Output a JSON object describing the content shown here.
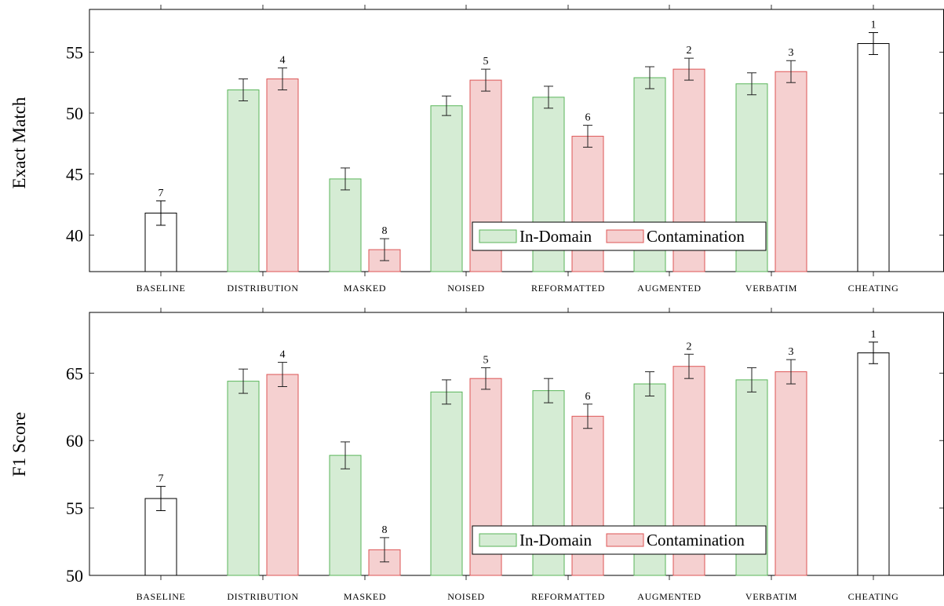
{
  "colors": {
    "in_domain_fill": "#d5ecd4",
    "in_domain_stroke": "#5ab55a",
    "contamination_fill": "#f5d0d0",
    "contamination_stroke": "#dd5555",
    "reference_fill": "#ffffff",
    "reference_stroke": "#000000"
  },
  "chart_data": [
    {
      "type": "bar",
      "ylabel": "Exact Match",
      "ylim": [
        37,
        58.5
      ],
      "yticks": [
        40,
        45,
        50,
        55
      ],
      "categories": [
        "BASELINE",
        "DISTRIBUTION",
        "MASKED",
        "NOISED",
        "REFORMATTED",
        "AUGMENTED",
        "VERBATIM",
        "CHEATING"
      ],
      "legend": {
        "entries": [
          "In-Domain",
          "Contamination"
        ],
        "placement": "bottom-center"
      },
      "series": [
        {
          "name": "In-Domain",
          "values": [
            null,
            51.9,
            44.6,
            50.6,
            51.3,
            52.9,
            52.4,
            null
          ],
          "errors": [
            null,
            0.9,
            0.9,
            0.8,
            0.9,
            0.9,
            0.9,
            null
          ],
          "ranks": [
            null,
            null,
            null,
            null,
            null,
            null,
            null,
            null
          ]
        },
        {
          "name": "Contamination",
          "values": [
            null,
            52.8,
            38.8,
            52.7,
            48.1,
            53.6,
            53.4,
            null
          ],
          "errors": [
            null,
            0.9,
            0.9,
            0.9,
            0.9,
            0.9,
            0.9,
            null
          ],
          "ranks": [
            null,
            "4",
            "8",
            "5",
            "6",
            "2",
            "3",
            null
          ]
        },
        {
          "name": "",
          "values": [
            41.8,
            null,
            null,
            null,
            null,
            null,
            null,
            55.7
          ],
          "errors": [
            1.0,
            null,
            null,
            null,
            null,
            null,
            null,
            0.9
          ],
          "ranks": [
            "7",
            null,
            null,
            null,
            null,
            null,
            null,
            "1"
          ]
        }
      ]
    },
    {
      "type": "bar",
      "ylabel": "F1 Score",
      "ylim": [
        50,
        69.5
      ],
      "yticks": [
        50,
        55,
        60,
        65
      ],
      "categories": [
        "BASELINE",
        "DISTRIBUTION",
        "MASKED",
        "NOISED",
        "REFORMATTED",
        "AUGMENTED",
        "VERBATIM",
        "CHEATING"
      ],
      "legend": {
        "entries": [
          "In-Domain",
          "Contamination"
        ],
        "placement": "bottom-center"
      },
      "series": [
        {
          "name": "In-Domain",
          "values": [
            null,
            64.4,
            58.9,
            63.6,
            63.7,
            64.2,
            64.5,
            null
          ],
          "errors": [
            null,
            0.9,
            1.0,
            0.9,
            0.9,
            0.9,
            0.9,
            null
          ],
          "ranks": [
            null,
            null,
            null,
            null,
            null,
            null,
            null,
            null
          ]
        },
        {
          "name": "Contamination",
          "values": [
            null,
            64.9,
            51.9,
            64.6,
            61.8,
            65.5,
            65.1,
            null
          ],
          "errors": [
            null,
            0.9,
            0.9,
            0.8,
            0.9,
            0.9,
            0.9,
            null
          ],
          "ranks": [
            null,
            "4",
            "8",
            "5",
            "6",
            "2",
            "3",
            null
          ]
        },
        {
          "name": "",
          "values": [
            55.7,
            null,
            null,
            null,
            null,
            null,
            null,
            66.5
          ],
          "errors": [
            0.9,
            null,
            null,
            null,
            null,
            null,
            null,
            0.8
          ],
          "ranks": [
            "7",
            null,
            null,
            null,
            null,
            null,
            null,
            "1"
          ]
        }
      ]
    }
  ]
}
